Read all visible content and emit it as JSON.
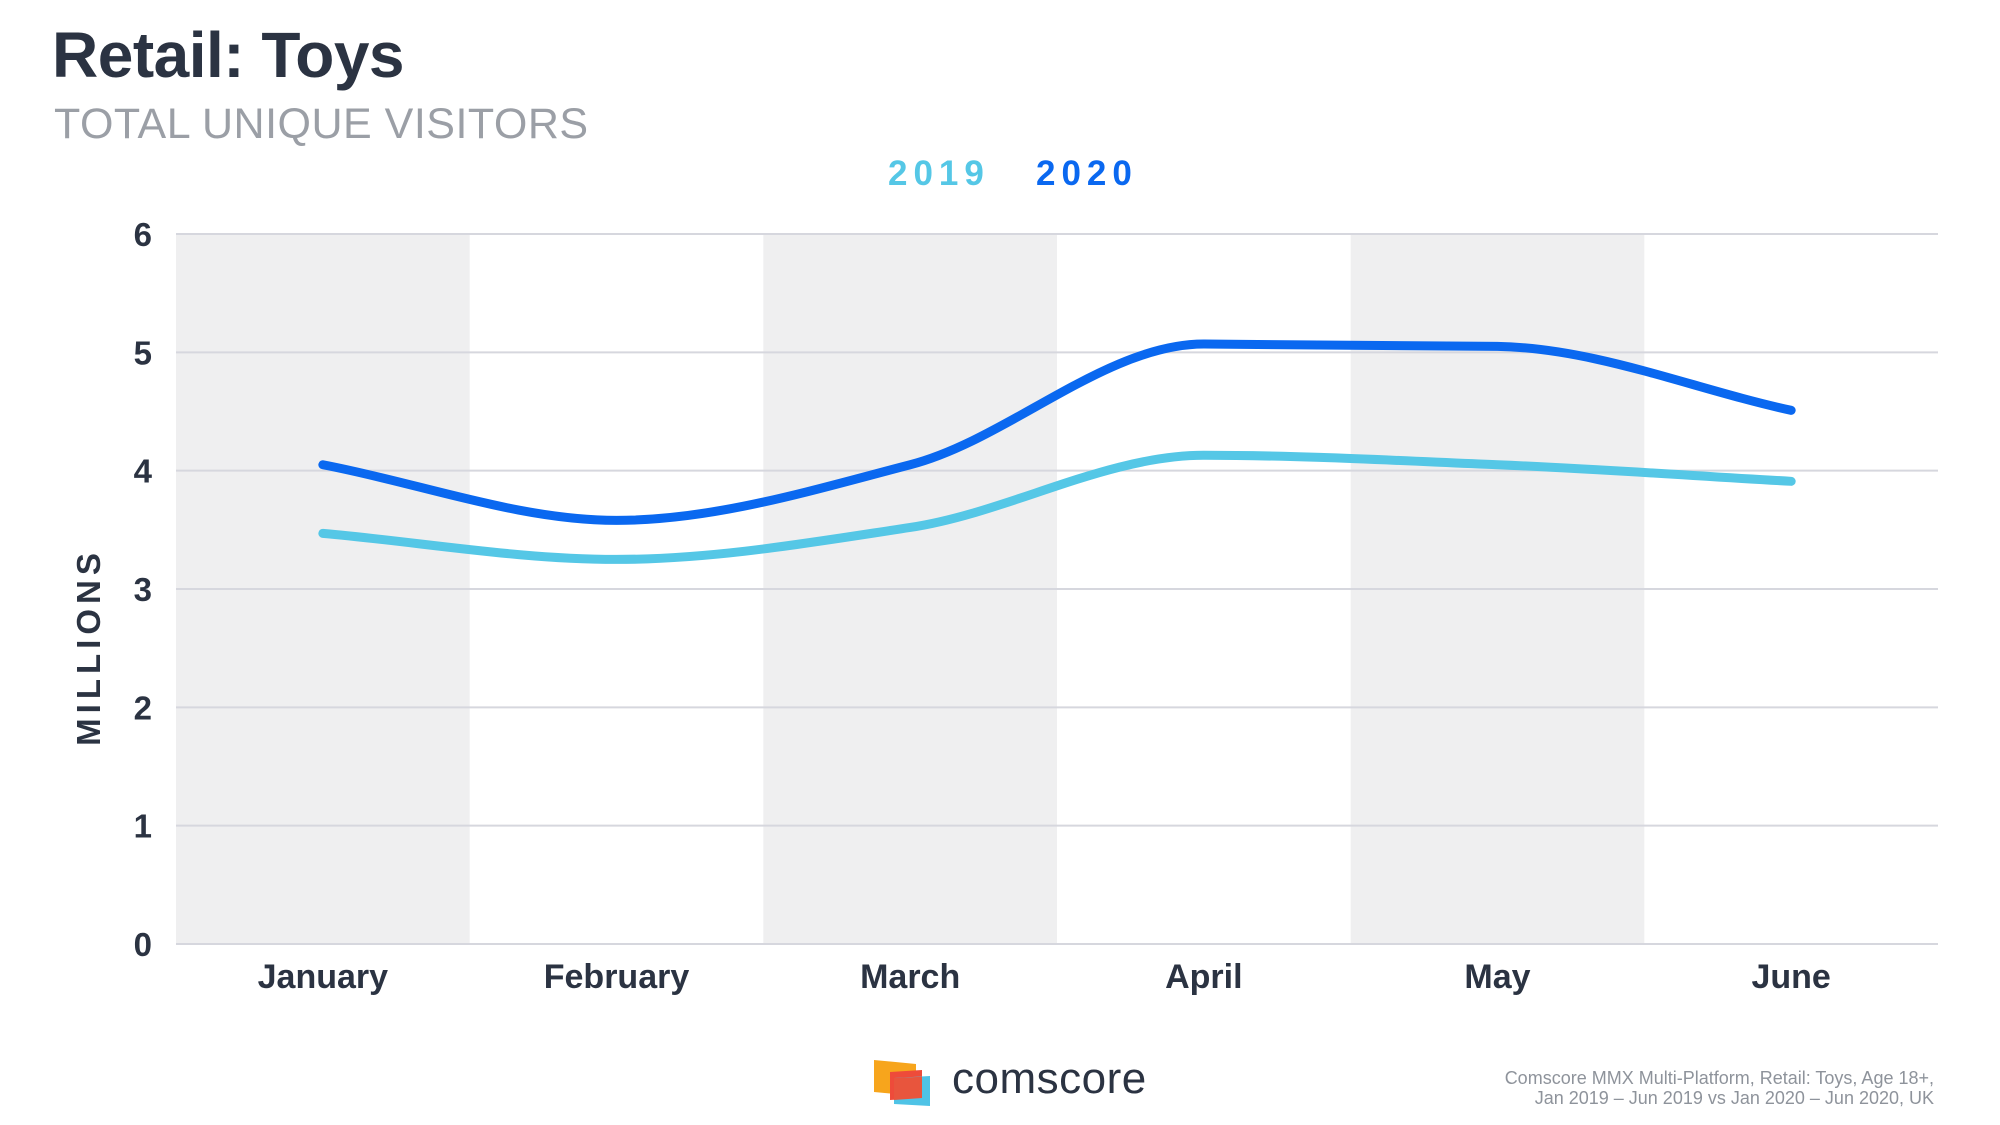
{
  "header": {
    "title": "Retail: Toys",
    "subtitle": "TOTAL UNIQUE VISITORS"
  },
  "legend": {
    "series_2019": "2019",
    "series_2020": "2020"
  },
  "chart_data": {
    "type": "line",
    "title": "Retail: Toys",
    "subtitle": "TOTAL UNIQUE VISITORS",
    "ylabel": "MILLIONS",
    "xlabel": "",
    "categories": [
      "January",
      "February",
      "March",
      "April",
      "May",
      "June"
    ],
    "yticks": [
      "0",
      "1",
      "2",
      "3",
      "4",
      "5",
      "6"
    ],
    "ylim": [
      0,
      6
    ],
    "grid": true,
    "legend_position": "top-center",
    "series": [
      {
        "name": "2019",
        "color": "#55c7e6",
        "values": [
          3.47,
          3.25,
          3.52,
          4.13,
          4.05,
          3.91
        ]
      },
      {
        "name": "2020",
        "color": "#0a68f0",
        "values": [
          4.05,
          3.58,
          4.05,
          5.07,
          5.05,
          4.51
        ]
      }
    ],
    "band_color": "#efeff0",
    "grid_color": "#d6d7de"
  },
  "footer": {
    "logo_text": "comscore",
    "source_line1": "Comscore MMX Multi-Platform, Retail: Toys, Age 18+,",
    "source_line2": "Jan 2019 – Jun 2019 vs Jan 2020 – Jun 2020, UK"
  }
}
